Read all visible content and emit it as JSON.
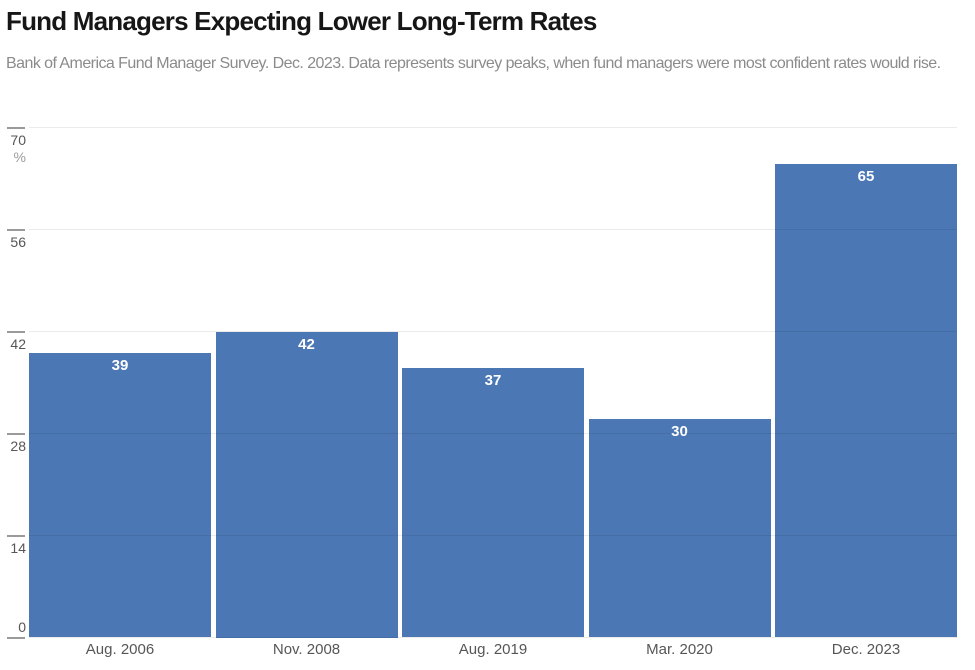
{
  "header": {
    "title": "Fund Managers Expecting Lower Long-Term Rates",
    "subtitle": "Bank of America Fund Manager Survey. Dec. 2023. Data represents survey peaks, when fund managers were most confident rates would rise."
  },
  "chart_data": {
    "type": "bar",
    "title": "Fund Managers Expecting Lower Long-Term Rates",
    "subtitle": "Bank of America Fund Manager Survey. Dec. 2023. Data represents survey peaks, when fund managers were most confident rates would rise.",
    "categories": [
      "Aug. 2006",
      "Nov. 2008",
      "Aug. 2019",
      "Mar. 2020",
      "Dec. 2023"
    ],
    "values": [
      39,
      42,
      37,
      30,
      65
    ],
    "value_labels": [
      "39",
      "42",
      "37",
      "30",
      "65"
    ],
    "xlabel": "",
    "ylabel": "%",
    "ylim": [
      0,
      70
    ],
    "yticks": [
      0,
      14,
      28,
      42,
      56,
      70
    ],
    "ytick_labels": [
      "0",
      "14",
      "28",
      "42",
      "56",
      "70"
    ],
    "unit_label": "%",
    "grid": true,
    "legend": false,
    "colors": {
      "bar": "#4b77b4",
      "value_label": "#ffffff",
      "axis_text": "#565656",
      "unit_text": "#9b9b9b",
      "tick_mark": "#9a9a9a",
      "title": "#161616",
      "subtitle": "#8b8b8b"
    }
  }
}
